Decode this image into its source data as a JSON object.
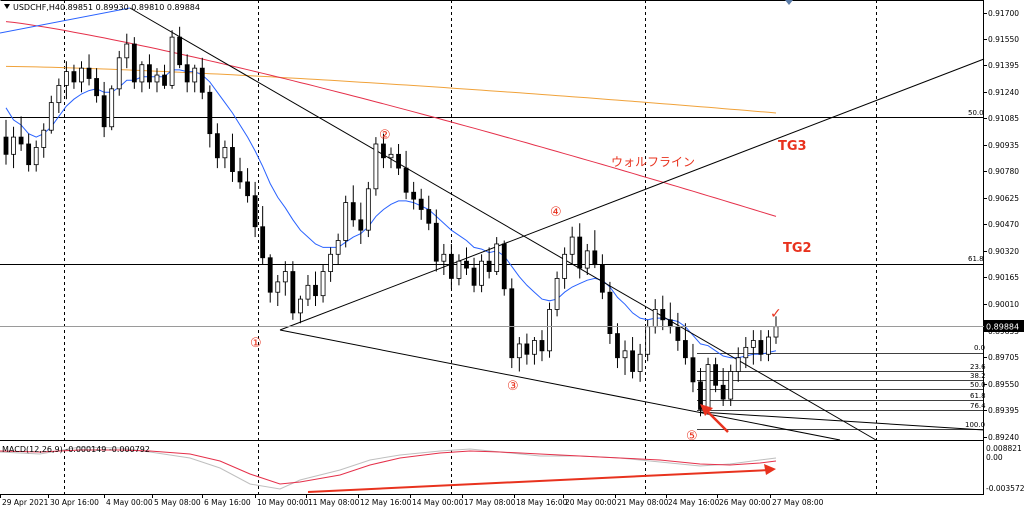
{
  "header": {
    "symbol_tf": "USDCHF,H4",
    "ohlc": "0.89851 0.89930 0.89810 0.89884"
  },
  "macd": {
    "label": "MACD(12,26,9) -0.000149 -0.000792",
    "ticks": [
      "0.008821",
      "0.00",
      "-0.003572"
    ]
  },
  "price_axis": {
    "ticks": [
      "0.91700",
      "0.91550",
      "0.91395",
      "0.91240",
      "0.91085",
      "0.90935",
      "0.90780",
      "0.90625",
      "0.90470",
      "0.90320",
      "0.90165",
      "0.90010",
      "0.89855",
      "0.89705",
      "0.89550",
      "0.89395",
      "0.89240"
    ],
    "current": "0.89884"
  },
  "time_axis": {
    "labels": [
      "29 Apr 2021",
      "30 Apr 16:00",
      "4 May 00:00",
      "5 May 08:00",
      "6 May 16:00",
      "10 May 00:00",
      "11 May 08:00",
      "12 May 16:00",
      "14 May 00:00",
      "17 May 08:00",
      "18 May 16:00",
      "20 May 00:00",
      "21 May 08:00",
      "24 May 16:00",
      "26 May 00:00",
      "27 May 08:00"
    ]
  },
  "levels": {
    "fib_main": [
      "50.0",
      "61.8"
    ],
    "fib_small": [
      "0.0",
      "23.6",
      "38.2",
      "50.0",
      "61.8",
      "76.4",
      "100.0"
    ]
  },
  "annotations": {
    "points": [
      "①",
      "②",
      "③",
      "④",
      "⑤"
    ],
    "wolfe_line": "ウォルフライン",
    "tg3": "TG3",
    "tg2": "TG2",
    "check": "✓"
  },
  "colors": {
    "bull": "#ffffff",
    "bear": "#000000",
    "ma_fast": "#2962ff",
    "ma_mid": "#e5304a",
    "ma_slow": "#f0a23a",
    "annotation_red": "#e8321e",
    "macd_signal": "#e5304a",
    "macd_main": "#bfbfbf"
  },
  "chart_data": {
    "type": "candlestick",
    "symbol": "USDCHF",
    "timeframe": "H4",
    "ylim": [
      0.8922,
      0.9178
    ],
    "candles": [
      [
        0.9098,
        0.9108,
        0.9082,
        0.9088
      ],
      [
        0.9088,
        0.9104,
        0.908,
        0.9098
      ],
      [
        0.9098,
        0.911,
        0.909,
        0.9094
      ],
      [
        0.9094,
        0.91,
        0.9078,
        0.9082
      ],
      [
        0.9082,
        0.9096,
        0.9078,
        0.9092
      ],
      [
        0.9092,
        0.9106,
        0.9086,
        0.9102
      ],
      [
        0.9102,
        0.9122,
        0.91,
        0.9118
      ],
      [
        0.9118,
        0.9132,
        0.9112,
        0.9128
      ],
      [
        0.9128,
        0.9142,
        0.912,
        0.9136
      ],
      [
        0.9136,
        0.914,
        0.9126,
        0.913
      ],
      [
        0.913,
        0.9142,
        0.9124,
        0.9138
      ],
      [
        0.9138,
        0.9146,
        0.9128,
        0.9132
      ],
      [
        0.9132,
        0.9138,
        0.9118,
        0.9122
      ],
      [
        0.9122,
        0.913,
        0.9098,
        0.9104
      ],
      [
        0.9104,
        0.9128,
        0.9102,
        0.9126
      ],
      [
        0.9126,
        0.9148,
        0.9122,
        0.9144
      ],
      [
        0.9144,
        0.9158,
        0.9138,
        0.9152
      ],
      [
        0.9152,
        0.9156,
        0.9126,
        0.913
      ],
      [
        0.913,
        0.9142,
        0.9124,
        0.914
      ],
      [
        0.914,
        0.9146,
        0.9126,
        0.913
      ],
      [
        0.913,
        0.9138,
        0.9124,
        0.9134
      ],
      [
        0.9134,
        0.914,
        0.9126,
        0.9128
      ],
      [
        0.9128,
        0.916,
        0.9126,
        0.9156
      ],
      [
        0.9156,
        0.9162,
        0.9138,
        0.914
      ],
      [
        0.914,
        0.9146,
        0.9124,
        0.913
      ],
      [
        0.913,
        0.914,
        0.9124,
        0.9138
      ],
      [
        0.9138,
        0.9144,
        0.912,
        0.9124
      ],
      [
        0.9124,
        0.9128,
        0.9092,
        0.91
      ],
      [
        0.91,
        0.9106,
        0.908,
        0.9086
      ],
      [
        0.9086,
        0.9096,
        0.908,
        0.9092
      ],
      [
        0.9092,
        0.91,
        0.9072,
        0.9078
      ],
      [
        0.9078,
        0.9086,
        0.9068,
        0.9072
      ],
      [
        0.9072,
        0.908,
        0.906,
        0.9064
      ],
      [
        0.9064,
        0.9072,
        0.904,
        0.9046
      ],
      [
        0.9046,
        0.9058,
        0.9024,
        0.9028
      ],
      [
        0.9028,
        0.903,
        0.9002,
        0.9008
      ],
      [
        0.9008,
        0.9018,
        0.9,
        0.9014
      ],
      [
        0.9014,
        0.9026,
        0.9006,
        0.902
      ],
      [
        0.902,
        0.9026,
        0.8992,
        0.8996
      ],
      [
        0.8996,
        0.9006,
        0.899,
        0.9004
      ],
      [
        0.9004,
        0.9018,
        0.9,
        0.9012
      ],
      [
        0.9012,
        0.902,
        0.9,
        0.9006
      ],
      [
        0.9006,
        0.9024,
        0.9002,
        0.902
      ],
      [
        0.902,
        0.9034,
        0.9014,
        0.903
      ],
      [
        0.903,
        0.9042,
        0.9024,
        0.9038
      ],
      [
        0.9038,
        0.9064,
        0.9034,
        0.906
      ],
      [
        0.906,
        0.907,
        0.9046,
        0.905
      ],
      [
        0.905,
        0.906,
        0.9036,
        0.9044
      ],
      [
        0.9044,
        0.9072,
        0.904,
        0.9068
      ],
      [
        0.9068,
        0.9098,
        0.9064,
        0.9094
      ],
      [
        0.9094,
        0.91,
        0.908,
        0.9086
      ],
      [
        0.9086,
        0.9092,
        0.908,
        0.9088
      ],
      [
        0.9088,
        0.9094,
        0.9076,
        0.908
      ],
      [
        0.908,
        0.909,
        0.9062,
        0.9066
      ],
      [
        0.9066,
        0.9072,
        0.9056,
        0.9062
      ],
      [
        0.9062,
        0.9068,
        0.905,
        0.9056
      ],
      [
        0.9056,
        0.9064,
        0.9044,
        0.9048
      ],
      [
        0.9048,
        0.9056,
        0.902,
        0.9026
      ],
      [
        0.9026,
        0.9036,
        0.9018,
        0.903
      ],
      [
        0.903,
        0.9036,
        0.901,
        0.9016
      ],
      [
        0.9016,
        0.903,
        0.9012,
        0.9026
      ],
      [
        0.9026,
        0.9034,
        0.9018,
        0.9022
      ],
      [
        0.9022,
        0.9028,
        0.9008,
        0.9012
      ],
      [
        0.9012,
        0.903,
        0.9008,
        0.9026
      ],
      [
        0.9026,
        0.9034,
        0.9016,
        0.902
      ],
      [
        0.902,
        0.904,
        0.9018,
        0.9036
      ],
      [
        0.9036,
        0.9038,
        0.9006,
        0.901
      ],
      [
        0.901,
        0.9016,
        0.8964,
        0.897
      ],
      [
        0.897,
        0.8982,
        0.8962,
        0.8978
      ],
      [
        0.8978,
        0.8984,
        0.8966,
        0.8972
      ],
      [
        0.8972,
        0.8982,
        0.8966,
        0.898
      ],
      [
        0.898,
        0.8986,
        0.8968,
        0.8974
      ],
      [
        0.8974,
        0.9002,
        0.897,
        0.8998
      ],
      [
        0.8998,
        0.902,
        0.8994,
        0.9016
      ],
      [
        0.9016,
        0.9034,
        0.901,
        0.903
      ],
      [
        0.903,
        0.9046,
        0.9024,
        0.904
      ],
      [
        0.904,
        0.9048,
        0.9016,
        0.9022
      ],
      [
        0.9022,
        0.9036,
        0.9018,
        0.9032
      ],
      [
        0.9032,
        0.9044,
        0.9022,
        0.9024
      ],
      [
        0.9024,
        0.903,
        0.9004,
        0.9008
      ],
      [
        0.9008,
        0.9014,
        0.8978,
        0.8984
      ],
      [
        0.8984,
        0.899,
        0.8964,
        0.897
      ],
      [
        0.897,
        0.898,
        0.896,
        0.8974
      ],
      [
        0.8974,
        0.8982,
        0.8958,
        0.8962
      ],
      [
        0.8962,
        0.8978,
        0.8956,
        0.8972
      ],
      [
        0.8972,
        0.8992,
        0.8968,
        0.8988
      ],
      [
        0.8988,
        0.9004,
        0.8984,
        0.8998
      ],
      [
        0.8998,
        0.9006,
        0.8986,
        0.8992
      ],
      [
        0.8992,
        0.9002,
        0.8984,
        0.8988
      ],
      [
        0.8988,
        0.8996,
        0.8974,
        0.898
      ],
      [
        0.898,
        0.899,
        0.8966,
        0.897
      ],
      [
        0.897,
        0.8978,
        0.895,
        0.8956
      ],
      [
        0.8956,
        0.8964,
        0.8936,
        0.894
      ],
      [
        0.894,
        0.897,
        0.8938,
        0.8966
      ],
      [
        0.8966,
        0.897,
        0.895,
        0.8954
      ],
      [
        0.8954,
        0.8964,
        0.8942,
        0.8946
      ],
      [
        0.8946,
        0.8966,
        0.8942,
        0.8962
      ],
      [
        0.8962,
        0.8976,
        0.8956,
        0.897
      ],
      [
        0.897,
        0.8982,
        0.8964,
        0.8976
      ],
      [
        0.8976,
        0.8986,
        0.8966,
        0.898
      ],
      [
        0.898,
        0.8986,
        0.8968,
        0.8972
      ],
      [
        0.8972,
        0.8986,
        0.8968,
        0.8982
      ],
      [
        0.8982,
        0.8994,
        0.8978,
        0.8988
      ]
    ],
    "ma_fast": [
      0.9115,
      0.9108,
      0.9105,
      0.91,
      0.9098,
      0.91,
      0.9104,
      0.911,
      0.9116,
      0.912,
      0.9123,
      0.9125,
      0.9126,
      0.9124,
      0.9124,
      0.9127,
      0.9131,
      0.9131,
      0.9133,
      0.9133,
      0.9133,
      0.9133,
      0.9137,
      0.9137,
      0.9136,
      0.9136,
      0.9134,
      0.913,
      0.9124,
      0.9118,
      0.9112,
      0.9105,
      0.9098,
      0.909,
      0.9081,
      0.9071,
      0.9063,
      0.9057,
      0.905,
      0.9044,
      0.904,
      0.9036,
      0.9034,
      0.9034,
      0.9034,
      0.9037,
      0.904,
      0.9042,
      0.9046,
      0.9052,
      0.9056,
      0.9059,
      0.9061,
      0.9061,
      0.906,
      0.9058,
      0.9056,
      0.9052,
      0.9048,
      0.9044,
      0.9041,
      0.9038,
      0.9034,
      0.9033,
      0.9031,
      0.9032,
      0.9029,
      0.9023,
      0.9017,
      0.9012,
      0.9008,
      0.9004,
      0.9003,
      0.9004,
      0.9008,
      0.9011,
      0.9013,
      0.9015,
      0.9016,
      0.9015,
      0.9011,
      0.9005,
      0.9001,
      0.8996,
      0.8993,
      0.8992,
      0.8993,
      0.8993,
      0.8992,
      0.8991,
      0.8988,
      0.8983,
      0.8978,
      0.8977,
      0.8974,
      0.8971,
      0.897,
      0.897,
      0.8971,
      0.8972,
      0.8972,
      0.8973,
      0.8974
    ],
    "ma_mid_start": 0.9165,
    "ma_mid_end": 0.9052,
    "ma_slow_start": 0.9139,
    "ma_slow_end": 0.9112,
    "fib_main_levels": [
      0.9109,
      0.9033
    ],
    "fib_small_levels": [
      0.8974,
      0.8966,
      0.896,
      0.8956,
      0.8952,
      0.8946,
      0.8931
    ],
    "current_price": 0.89884
  }
}
